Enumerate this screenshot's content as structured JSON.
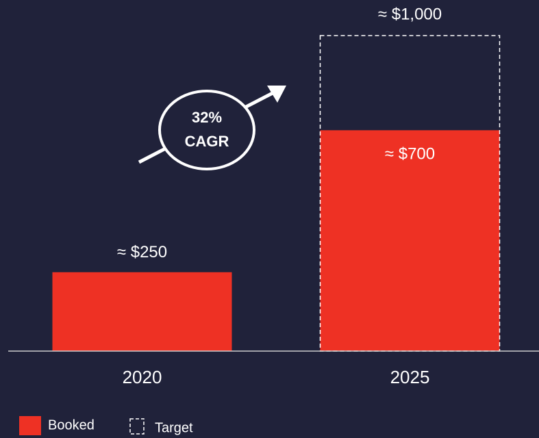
{
  "chart_data": {
    "type": "bar",
    "categories": [
      "2020",
      "2025"
    ],
    "series": [
      {
        "name": "Booked",
        "color": "#ee3124",
        "values": [
          250,
          700
        ],
        "value_labels": [
          "≈ $250",
          "≈ $700"
        ]
      },
      {
        "name": "Target",
        "color": "#ffffff",
        "dashed": true,
        "values": [
          null,
          1000
        ],
        "value_labels": [
          null,
          "≈ $1,000"
        ]
      }
    ],
    "annotation": [
      "32%",
      "CAGR"
    ]
  }
}
